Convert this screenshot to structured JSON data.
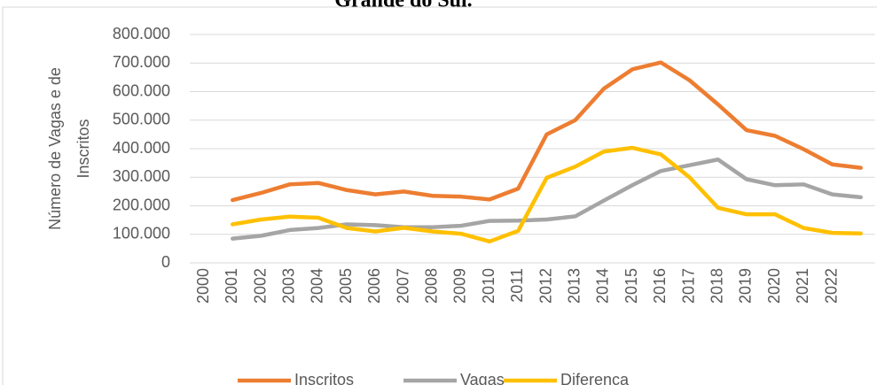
{
  "chart_data": {
    "type": "line",
    "title": "Grande do Sul.",
    "ylabel": [
      "Número de Vagas e de",
      "Inscritos"
    ],
    "categories": [
      "2000",
      "2001",
      "2002",
      "2003",
      "2004",
      "2005",
      "2006",
      "2007",
      "2008",
      "2009",
      "2010",
      "2011",
      "2012",
      "2013",
      "2014",
      "2015",
      "2016",
      "2017",
      "2018",
      "2019",
      "2020",
      "2021",
      "2022",
      null
    ],
    "series": [
      {
        "name": "Inscritos",
        "color": "#ED7D31",
        "values": [
          null,
          220000,
          245000,
          275000,
          280000,
          255000,
          240000,
          250000,
          235000,
          232000,
          222000,
          260000,
          450000,
          500000,
          610000,
          678000,
          702000,
          640000,
          555000,
          465000,
          445000,
          398000,
          345000,
          333000
        ]
      },
      {
        "name": "Vagas",
        "color": "#A5A5A5",
        "values": [
          null,
          85000,
          95000,
          115000,
          122000,
          135000,
          132000,
          125000,
          125000,
          130000,
          147000,
          148000,
          152000,
          163000,
          218000,
          272000,
          322000,
          342000,
          362000,
          293000,
          272000,
          275000,
          240000,
          230000
        ]
      },
      {
        "name": "Diferença",
        "color": "#FFC000",
        "values": [
          null,
          135000,
          152000,
          162000,
          158000,
          122000,
          110000,
          123000,
          110000,
          102000,
          75000,
          112000,
          298000,
          337000,
          390000,
          403000,
          380000,
          300000,
          193000,
          170000,
          170000,
          122000,
          105000,
          103000
        ]
      }
    ],
    "ylim": [
      0,
      800000
    ],
    "yticks": [
      0,
      {
        "value": 100000,
        "label": "100.000"
      },
      {
        "value": 200000,
        "label": "200.000"
      },
      {
        "value": 300000,
        "label": "300.000"
      },
      {
        "value": 400000,
        "label": "400.000"
      },
      {
        "value": 500000,
        "label": "500.000"
      },
      {
        "value": 600000,
        "label": "600.000"
      },
      {
        "value": 700000,
        "label": "700.000"
      },
      {
        "value": 800000,
        "label": "800.000"
      }
    ],
    "grid": true,
    "legend": "bottom"
  }
}
